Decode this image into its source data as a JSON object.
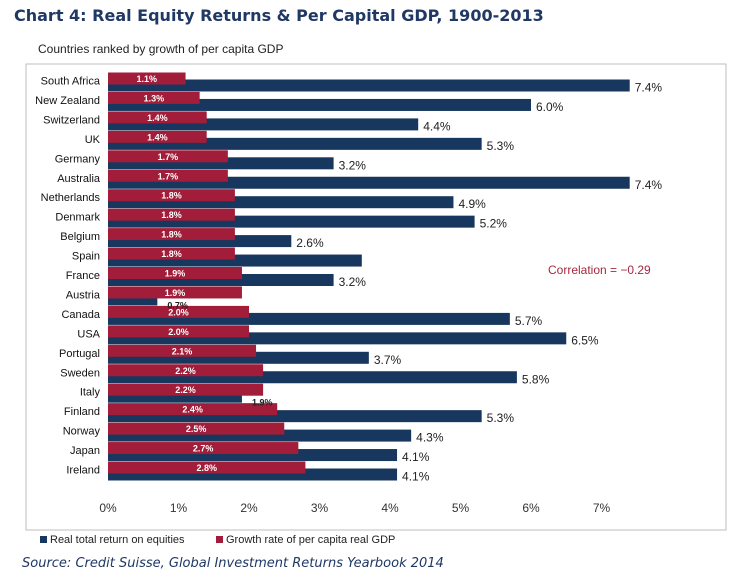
{
  "title": "Chart 4:  Real Equity Returns & Per Capital GDP, 1900-2013",
  "subtitle": "Countries ranked by growth of per capita GDP",
  "source": "Source: Credit Suisse, Global Investment Returns Yearbook 2014",
  "colors": {
    "equity": "#17375e",
    "gdp": "#a11d3a",
    "title": "#1f3864"
  },
  "chart_data": {
    "type": "bar",
    "orientation": "horizontal",
    "categories": [
      "South Africa",
      "New Zealand",
      "Switzerland",
      "UK",
      "Germany",
      "Australia",
      "Netherlands",
      "Denmark",
      "Belgium",
      "Spain",
      "France",
      "Austria",
      "Canada",
      "USA",
      "Portugal",
      "Sweden",
      "Italy",
      "Finland",
      "Norway",
      "Japan",
      "Ireland"
    ],
    "series": [
      {
        "name": "Real total return on equities",
        "values": [
          7.4,
          6.0,
          4.4,
          5.3,
          3.2,
          7.4,
          4.9,
          5.2,
          2.6,
          3.6,
          3.2,
          0.7,
          5.7,
          6.5,
          3.7,
          5.8,
          1.9,
          5.3,
          4.3,
          4.1,
          4.1
        ],
        "labels": [
          "7.4%",
          "6.0%",
          "4.4%",
          "5.3%",
          "3.2%",
          "7.4%",
          "4.9%",
          "5.2%",
          "2.6%",
          "",
          "3.2%",
          "0.7%",
          "5.7%",
          "6.5%",
          "3.7%",
          "5.8%",
          "1.9%",
          "5.3%",
          "4.3%",
          "4.1%",
          "4.1%"
        ]
      },
      {
        "name": "Growth rate of per capita real GDP",
        "values": [
          1.1,
          1.3,
          1.4,
          1.4,
          1.7,
          1.7,
          1.8,
          1.8,
          1.8,
          1.8,
          1.9,
          1.9,
          2.0,
          2.0,
          2.1,
          2.2,
          2.2,
          2.4,
          2.5,
          2.7,
          2.8
        ],
        "labels": [
          "1.1%",
          "1.3%",
          "1.4%",
          "1.4%",
          "1.7%",
          "1.7%",
          "1.8%",
          "1.8%",
          "1.8%",
          "1.8%",
          "1.9%",
          "1.9%",
          "2.0%",
          "2.0%",
          "2.1%",
          "2.2%",
          "2.2%",
          "2.4%",
          "2.5%",
          "2.7%",
          "2.8%"
        ]
      }
    ],
    "x_ticks": [
      "0%",
      "1%",
      "2%",
      "3%",
      "4%",
      "5%",
      "6%",
      "7%"
    ],
    "xlim": [
      0,
      7.8
    ],
    "annotation": "Correlation = −0.29",
    "legend": "bottom-left",
    "grid": false
  }
}
